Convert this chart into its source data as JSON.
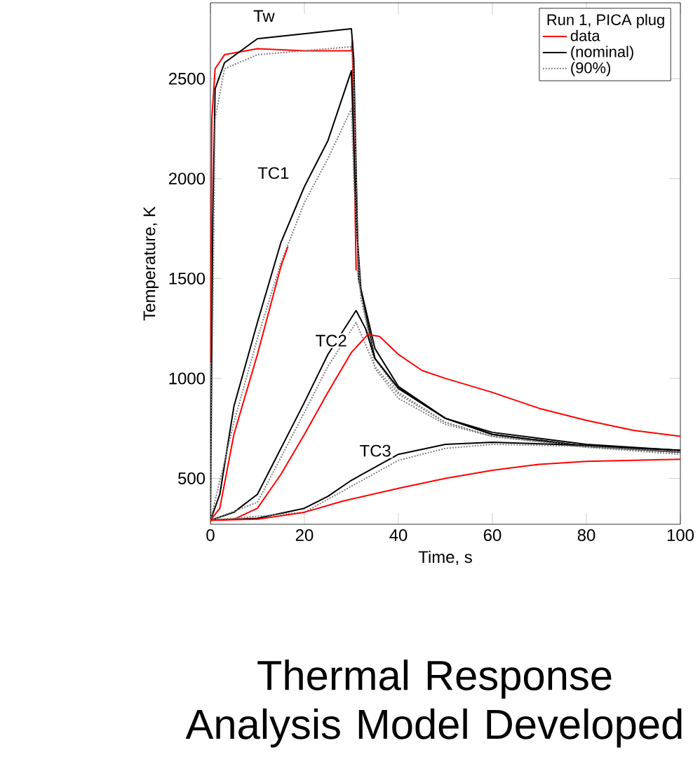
{
  "chart_data": {
    "type": "line",
    "xlabel": "Time, s",
    "ylabel": "Temperature, K",
    "legend_title": "Run 1, PICA plug",
    "legend": "top right",
    "grid": false,
    "marker": "none",
    "xlim": [
      0,
      100
    ],
    "xticks": [
      0,
      20,
      40,
      60,
      80,
      100
    ],
    "ylim": [
      270,
      2880
    ],
    "yticks": [
      500,
      1000,
      1500,
      2000,
      2500
    ],
    "series": [
      {
        "name": "data",
        "color": "#ff0000",
        "line_style": "solid",
        "x": [
          0,
          0.3,
          1,
          3,
          10,
          20,
          30,
          30.2,
          31
        ],
        "values": [
          1080,
          2300,
          2550,
          2620,
          2650,
          2640,
          2640,
          2690,
          1540
        ]
      },
      {
        "name": "(nominal)",
        "color": "#000000",
        "line_style": "solid",
        "x": [
          0,
          0.5,
          1,
          3,
          10,
          20,
          30,
          30.5,
          31.5,
          35,
          40,
          50,
          60,
          80,
          100
        ],
        "values": [
          290,
          1800,
          2450,
          2580,
          2700,
          2725,
          2750,
          2600,
          1500,
          1100,
          950,
          800,
          730,
          670,
          640
        ]
      },
      {
        "name": "(90%)",
        "color": "#808080",
        "line_style": "dotted",
        "x": [
          0,
          1,
          3,
          10,
          30,
          30.5,
          31.5,
          35,
          40,
          50,
          60,
          80,
          100
        ],
        "values": [
          290,
          2300,
          2550,
          2620,
          2660,
          2500,
          1500,
          1050,
          900,
          770,
          710,
          660,
          630
        ]
      },
      {
        "color": "#000000",
        "line_style": "solid",
        "x": [
          0,
          2,
          5,
          10,
          15,
          20,
          25,
          30,
          31,
          32,
          35,
          40,
          50,
          60,
          80,
          100
        ],
        "values": [
          290,
          420,
          860,
          1280,
          1680,
          1960,
          2190,
          2540,
          1800,
          1450,
          1150,
          960,
          800,
          720,
          660,
          630
        ]
      },
      {
        "color": "#808080",
        "line_style": "dotted",
        "x": [
          0,
          5,
          10,
          15,
          20,
          25,
          30,
          30.5,
          32,
          35,
          40,
          50,
          60,
          80,
          100
        ],
        "values": [
          290,
          780,
          1200,
          1580,
          1880,
          2100,
          2350,
          2000,
          1400,
          1100,
          930,
          780,
          710,
          655,
          620
        ]
      },
      {
        "color": "#ff0000",
        "line_style": "solid",
        "x": [
          0,
          2,
          5,
          10,
          15,
          16.5
        ],
        "values": [
          290,
          350,
          720,
          1120,
          1560,
          1660
        ]
      },
      {
        "color": "#000000",
        "line_style": "solid",
        "x": [
          0,
          5,
          10,
          15,
          20,
          25,
          31,
          33,
          35,
          40,
          50,
          60,
          80,
          100
        ],
        "values": [
          290,
          330,
          420,
          650,
          880,
          1120,
          1340,
          1250,
          1100,
          950,
          800,
          720,
          660,
          640
        ]
      },
      {
        "color": "#808080",
        "line_style": "dotted",
        "x": [
          0,
          10,
          20,
          25,
          31,
          35,
          40,
          50,
          60,
          80,
          100
        ],
        "values": [
          290,
          380,
          830,
          1060,
          1280,
          1060,
          920,
          780,
          710,
          660,
          635
        ]
      },
      {
        "color": "#ff0000",
        "line_style": "solid",
        "x": [
          0,
          5,
          10,
          15,
          20,
          25,
          30,
          33.5,
          36,
          40,
          45,
          50,
          60,
          70,
          80,
          90,
          100
        ],
        "values": [
          290,
          295,
          350,
          520,
          720,
          930,
          1130,
          1220,
          1210,
          1120,
          1040,
          1000,
          930,
          850,
          790,
          740,
          710
        ]
      },
      {
        "color": "#000000",
        "line_style": "solid",
        "x": [
          0,
          10,
          20,
          25,
          30,
          40,
          50,
          60,
          80,
          100
        ],
        "values": [
          290,
          300,
          350,
          410,
          490,
          620,
          670,
          680,
          665,
          640
        ]
      },
      {
        "color": "#808080",
        "line_style": "dotted",
        "x": [
          0,
          20,
          30,
          40,
          50,
          60,
          80,
          100
        ],
        "values": [
          290,
          330,
          460,
          590,
          650,
          670,
          660,
          630
        ]
      },
      {
        "color": "#ff0000",
        "line_style": "solid",
        "x": [
          0,
          10,
          20,
          28,
          40,
          50,
          60,
          70,
          80,
          90,
          100
        ],
        "values": [
          290,
          295,
          330,
          385,
          450,
          500,
          540,
          570,
          585,
          590,
          595
        ]
      }
    ],
    "annotations": [
      {
        "text": "Tw",
        "x": 11.4,
        "y": 2814
      },
      {
        "text": "TC1",
        "x": 13.4,
        "y": 2028
      },
      {
        "text": "TC2",
        "x": 25.7,
        "y": 1189
      },
      {
        "text": "TC3",
        "x": 35.1,
        "y": 638
      },
      "Thermal Response Analysis Model Developed"
    ]
  }
}
